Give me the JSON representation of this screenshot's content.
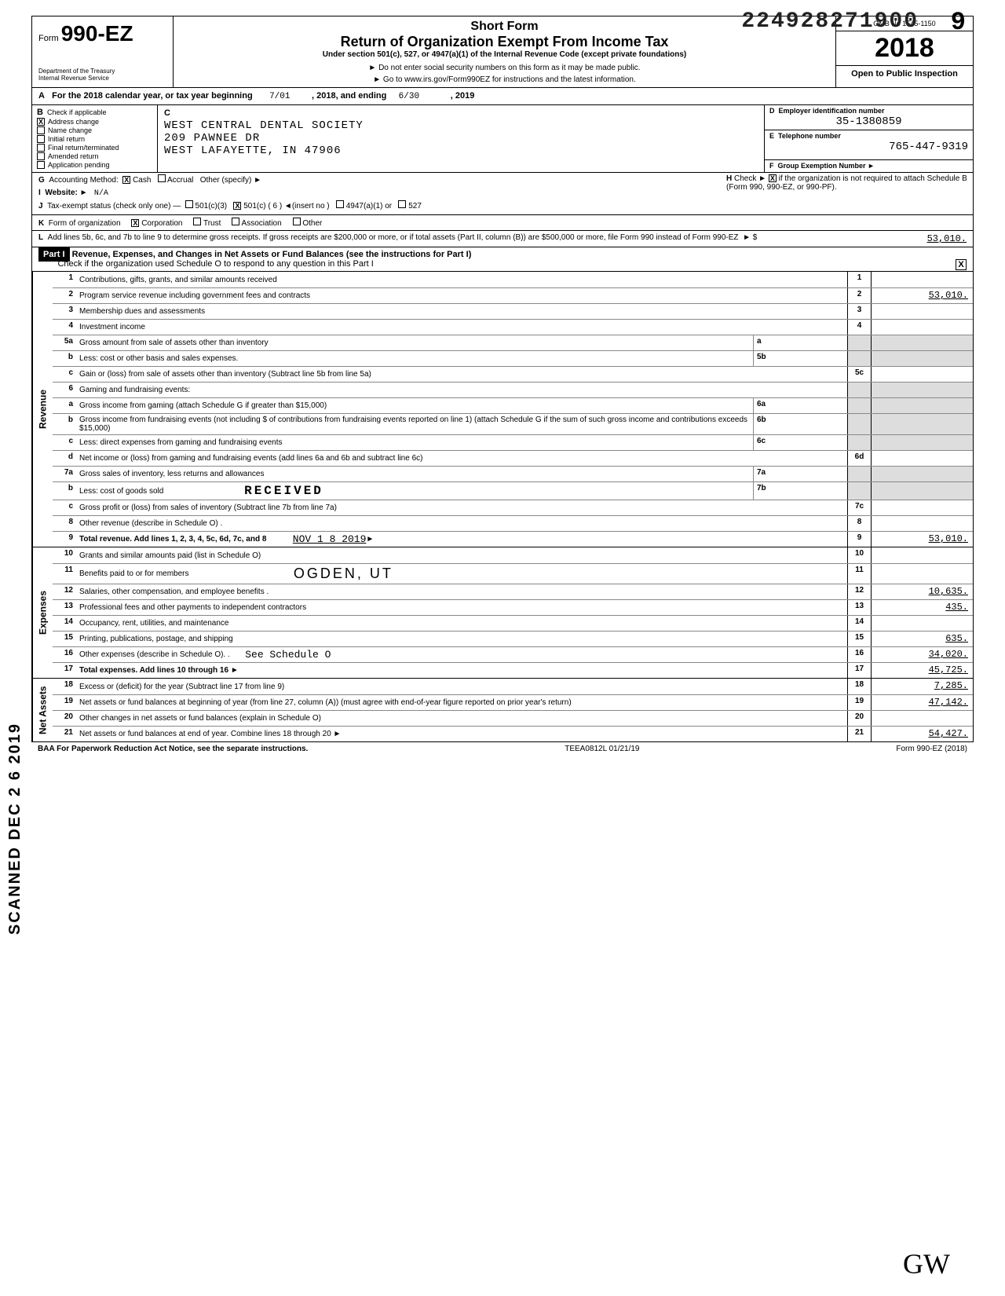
{
  "stamp_number": "224928271900",
  "stamp_digit": "9",
  "form": {
    "prefix": "Form",
    "number": "990-EZ",
    "dept": "Department of the Treasury\nInternal Revenue Service",
    "title_short": "Short Form",
    "title_main": "Return of Organization Exempt From Income Tax",
    "subtitle": "Under section 501(c), 527, or 4947(a)(1) of the Internal Revenue Code (except private foundations)",
    "warn": "► Do not enter social security numbers on this form as it may be made public.",
    "goto": "► Go to www.irs.gov/Form990EZ for instructions and the latest information.",
    "omb": "OMB No 1545-1150",
    "year": "2018",
    "open": "Open to Public Inspection"
  },
  "lineA": {
    "text": "For the 2018 calendar year, or tax year beginning",
    "begin": "7/01",
    "mid": ", 2018, and ending",
    "end": "6/30",
    "endyear": ", 2019"
  },
  "sectionB": {
    "label": "B",
    "legend": "Check if applicable",
    "items": [
      {
        "label": "Address change",
        "checked": "X"
      },
      {
        "label": "Name change",
        "checked": ""
      },
      {
        "label": "Initial return",
        "checked": ""
      },
      {
        "label": "Final return/terminated",
        "checked": ""
      },
      {
        "label": "Amended return",
        "checked": ""
      },
      {
        "label": "Application pending",
        "checked": ""
      }
    ]
  },
  "sectionC": {
    "label": "C",
    "name": "WEST CENTRAL DENTAL SOCIETY",
    "addr1": "209 PAWNEE DR",
    "addr2": "WEST LAFAYETTE, IN 47906"
  },
  "sectionD": {
    "label": "D",
    "legend": "Employer identification number",
    "value": "35-1380859"
  },
  "sectionE": {
    "label": "E",
    "legend": "Telephone number",
    "value": "765-447-9319"
  },
  "sectionF": {
    "label": "F",
    "legend": "Group Exemption Number ►",
    "value": ""
  },
  "rowG": {
    "label": "G",
    "text": "Accounting Method:",
    "cash": "X",
    "cash_label": "Cash",
    "accrual_label": "Accrual",
    "other_label": "Other (specify) ►"
  },
  "rowI": {
    "label": "I",
    "text": "Website: ►",
    "value": "N/A"
  },
  "rowJ": {
    "label": "J",
    "text": "Tax-exempt status (check only one) —",
    "opt1": "501(c)(3)",
    "opt2_checked": "X",
    "opt2": "501(c) ( 6 ) ◄(insert no )",
    "opt3": "4947(a)(1) or",
    "opt4": "527"
  },
  "rowH": {
    "label": "H",
    "text": "Check ► ",
    "checked": "X",
    "after": " if the organization is not required to attach Schedule B (Form 990, 990-EZ, or 990-PF)."
  },
  "rowK": {
    "label": "K",
    "text": "Form of organization",
    "corp_x": "X",
    "corp": "Corporation",
    "trust": "Trust",
    "assoc": "Association",
    "other": "Other"
  },
  "rowL": {
    "label": "L",
    "text": "Add lines 5b, 6c, and 7b to line 9 to determine gross receipts. If gross receipts are $200,000 or more, or if total assets (Part II, column (B)) are $500,000 or more, file Form 990 instead of Form 990-EZ",
    "arrow": "► $",
    "amount": "53,010."
  },
  "part1": {
    "badge": "Part I",
    "title": "Revenue, Expenses, and Changes in Net Assets or Fund Balances (see the instructions for Part I)",
    "check_text": "Check if the organization used Schedule O to respond to any question in this Part I",
    "check_val": "X"
  },
  "revenue_label": "Revenue",
  "expenses_label": "Expenses",
  "netassets_label": "Net Assets",
  "lines": {
    "l1": {
      "num": "1",
      "desc": "Contributions, gifts, grants, and similar amounts received",
      "n": "1",
      "amt": ""
    },
    "l2": {
      "num": "2",
      "desc": "Program service revenue including government fees and contracts",
      "n": "2",
      "amt": "53,010."
    },
    "l3": {
      "num": "3",
      "desc": "Membership dues and assessments",
      "n": "3",
      "amt": ""
    },
    "l4": {
      "num": "4",
      "desc": "Investment income",
      "n": "4",
      "amt": ""
    },
    "l5a": {
      "num": "5a",
      "desc": "Gross amount from sale of assets other than inventory",
      "mini": "a"
    },
    "l5b": {
      "num": "b",
      "desc": "Less: cost or other basis and sales expenses.",
      "mini": "5b"
    },
    "l5c": {
      "num": "c",
      "desc": "Gain or (loss) from sale of assets other than inventory (Subtract line 5b from line 5a)",
      "n": "5c",
      "amt": ""
    },
    "l6": {
      "num": "6",
      "desc": "Gaming and fundraising events:"
    },
    "l6a": {
      "num": "a",
      "desc": "Gross income from gaming (attach Schedule G if greater than $15,000)",
      "mini": "6a"
    },
    "l6b": {
      "num": "b",
      "desc": "Gross income from fundraising events (not including $                   of contributions from fundraising events reported on line 1) (attach Schedule G if the sum of such gross income and contributions exceeds $15,000)",
      "mini": "6b"
    },
    "l6c": {
      "num": "c",
      "desc": "Less: direct expenses from gaming and fundraising events",
      "mini": "6c"
    },
    "l6d": {
      "num": "d",
      "desc": "Net income or (loss) from gaming and fundraising events (add lines 6a and 6b and subtract line 6c)",
      "n": "6d",
      "amt": ""
    },
    "l7a": {
      "num": "7a",
      "desc": "Gross sales of inventory, less returns and allowances",
      "mini": "7a"
    },
    "l7b": {
      "num": "b",
      "desc": "Less: cost of goods sold",
      "mini": "7b"
    },
    "l7c": {
      "num": "c",
      "desc": "Gross profit or (loss) from sales of inventory (Subtract line 7b from line 7a)",
      "n": "7c",
      "amt": ""
    },
    "l8": {
      "num": "8",
      "desc": "Other revenue (describe in Schedule O) .",
      "n": "8",
      "amt": ""
    },
    "l9": {
      "num": "9",
      "desc": "Total revenue. Add lines 1, 2, 3, 4, 5c, 6d, 7c, and 8",
      "n": "9",
      "amt": "53,010."
    },
    "l10": {
      "num": "10",
      "desc": "Grants and similar amounts paid (list in Schedule O)",
      "n": "10",
      "amt": ""
    },
    "l11": {
      "num": "11",
      "desc": "Benefits paid to or for members",
      "n": "11",
      "amt": ""
    },
    "l12": {
      "num": "12",
      "desc": "Salaries, other compensation, and employee benefits .",
      "n": "12",
      "amt": "10,635."
    },
    "l13": {
      "num": "13",
      "desc": "Professional fees and other payments to independent contractors",
      "n": "13",
      "amt": "435."
    },
    "l14": {
      "num": "14",
      "desc": "Occupancy, rent, utilities, and maintenance",
      "n": "14",
      "amt": ""
    },
    "l15": {
      "num": "15",
      "desc": "Printing, publications, postage, and shipping",
      "n": "15",
      "amt": "635."
    },
    "l16": {
      "num": "16",
      "desc": "Other expenses (describe in Schedule O). .",
      "extra": "See Schedule O",
      "n": "16",
      "amt": "34,020."
    },
    "l17": {
      "num": "17",
      "desc": "Total expenses. Add lines 10 through 16",
      "n": "17",
      "amt": "45,725."
    },
    "l18": {
      "num": "18",
      "desc": "Excess or (deficit) for the year (Subtract line 17 from line 9)",
      "n": "18",
      "amt": "7,285."
    },
    "l19": {
      "num": "19",
      "desc": "Net assets or fund balances at beginning of year (from line 27, column (A)) (must agree with end-of-year figure reported on prior year's return)",
      "n": "19",
      "amt": "47,142."
    },
    "l20": {
      "num": "20",
      "desc": "Other changes in net assets or fund balances (explain in Schedule O)",
      "n": "20",
      "amt": ""
    },
    "l21": {
      "num": "21",
      "desc": "Net assets or fund balances at end of year. Combine lines 18 through 20",
      "n": "21",
      "amt": "54,427."
    }
  },
  "received_stamp": "RECEIVED",
  "received_date": "NOV 1 8 2019",
  "ogden": "OGDEN, UT",
  "footer_left": "BAA  For Paperwork Reduction Act Notice, see the separate instructions.",
  "footer_mid": "TEEA0812L   01/21/19",
  "footer_right": "Form 990-EZ (2018)",
  "scanned_side": "SCANNED DEC 2 6 2019"
}
